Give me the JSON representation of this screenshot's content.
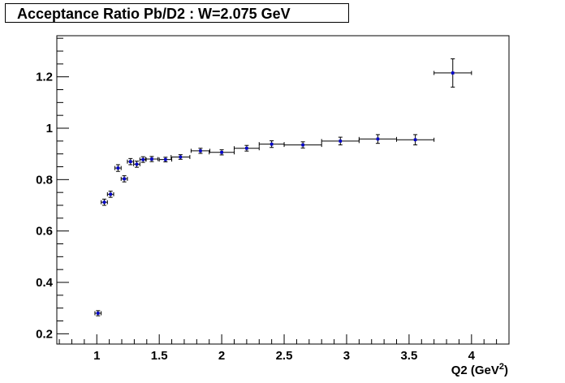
{
  "chart_data": {
    "type": "scatter",
    "title": "Acceptance Ratio Pb/D2 : W=2.075 GeV",
    "xlabel": "Q2 (GeV",
    "xlabel_sup": "2",
    "xlabel_close": ")",
    "ylabel": "",
    "xlim": [
      0.68,
      4.3
    ],
    "ylim": [
      0.16,
      1.36
    ],
    "grid": false,
    "legend": "none",
    "marker_color": "#0000cc",
    "error_color": "#000000",
    "x_ticks": [
      {
        "value": 1,
        "label": "1"
      },
      {
        "value": 1.5,
        "label": "1.5"
      },
      {
        "value": 2,
        "label": "2"
      },
      {
        "value": 2.5,
        "label": "2.5"
      },
      {
        "value": 3,
        "label": "3"
      },
      {
        "value": 3.5,
        "label": "3.5"
      },
      {
        "value": 4,
        "label": "4"
      }
    ],
    "y_ticks": [
      {
        "value": 0.2,
        "label": "0.2"
      },
      {
        "value": 0.4,
        "label": "0.4"
      },
      {
        "value": 0.6,
        "label": "0.6"
      },
      {
        "value": 0.8,
        "label": "0.8"
      },
      {
        "value": 1.0,
        "label": "1"
      },
      {
        "value": 1.2,
        "label": "1.2"
      }
    ],
    "points": [
      {
        "x": 1.01,
        "y": 0.28,
        "xerr": 0.025,
        "yerr": 0.01
      },
      {
        "x": 1.06,
        "y": 0.712,
        "xerr": 0.025,
        "yerr": 0.012
      },
      {
        "x": 1.11,
        "y": 0.743,
        "xerr": 0.025,
        "yerr": 0.012
      },
      {
        "x": 1.17,
        "y": 0.845,
        "xerr": 0.025,
        "yerr": 0.013
      },
      {
        "x": 1.22,
        "y": 0.803,
        "xerr": 0.025,
        "yerr": 0.012
      },
      {
        "x": 1.27,
        "y": 0.87,
        "xerr": 0.025,
        "yerr": 0.012
      },
      {
        "x": 1.32,
        "y": 0.86,
        "xerr": 0.025,
        "yerr": 0.012
      },
      {
        "x": 1.37,
        "y": 0.878,
        "xerr": 0.025,
        "yerr": 0.011
      },
      {
        "x": 1.44,
        "y": 0.88,
        "xerr": 0.05,
        "yerr": 0.01
      },
      {
        "x": 1.55,
        "y": 0.878,
        "xerr": 0.05,
        "yerr": 0.009
      },
      {
        "x": 1.67,
        "y": 0.888,
        "xerr": 0.075,
        "yerr": 0.009
      },
      {
        "x": 1.83,
        "y": 0.912,
        "xerr": 0.075,
        "yerr": 0.01
      },
      {
        "x": 2.0,
        "y": 0.906,
        "xerr": 0.1,
        "yerr": 0.01
      },
      {
        "x": 2.2,
        "y": 0.922,
        "xerr": 0.1,
        "yerr": 0.011
      },
      {
        "x": 2.4,
        "y": 0.938,
        "xerr": 0.1,
        "yerr": 0.013
      },
      {
        "x": 2.65,
        "y": 0.935,
        "xerr": 0.15,
        "yerr": 0.012
      },
      {
        "x": 2.95,
        "y": 0.95,
        "xerr": 0.15,
        "yerr": 0.015
      },
      {
        "x": 3.25,
        "y": 0.958,
        "xerr": 0.15,
        "yerr": 0.017
      },
      {
        "x": 3.55,
        "y": 0.955,
        "xerr": 0.15,
        "yerr": 0.02
      },
      {
        "x": 3.85,
        "y": 1.215,
        "xerr": 0.15,
        "yerr": 0.055
      }
    ]
  }
}
